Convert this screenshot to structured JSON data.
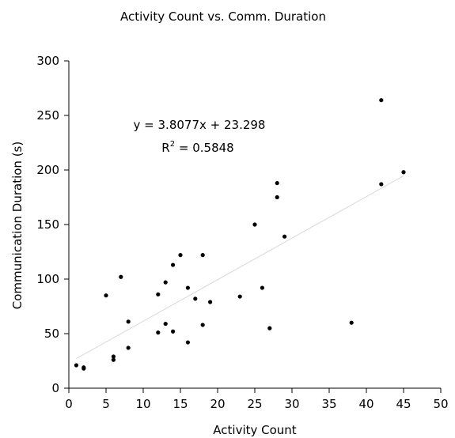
{
  "chart_data": {
    "type": "scatter",
    "title": "Activity Count vs. Comm. Duration",
    "xlabel": "Activity Count",
    "ylabel": "Communication Duration (s)",
    "xlim": [
      0,
      50
    ],
    "ylim": [
      0,
      300
    ],
    "x_ticks": [
      "0",
      "5",
      "10",
      "15",
      "20",
      "25",
      "30",
      "35",
      "40",
      "45",
      "50"
    ],
    "y_ticks": [
      "0",
      "50",
      "100",
      "150",
      "200",
      "250",
      "300"
    ],
    "grid": false,
    "legend": "none",
    "series": [
      {
        "points": [
          [
            1,
            21
          ],
          [
            2,
            18
          ],
          [
            2,
            19
          ],
          [
            5,
            85
          ],
          [
            6,
            26
          ],
          [
            6,
            29
          ],
          [
            7,
            102
          ],
          [
            8,
            61
          ],
          [
            8,
            37
          ],
          [
            12,
            51
          ],
          [
            12,
            86
          ],
          [
            13,
            59
          ],
          [
            13,
            97
          ],
          [
            14,
            113
          ],
          [
            14,
            52
          ],
          [
            15,
            122
          ],
          [
            16,
            92
          ],
          [
            16,
            42
          ],
          [
            17,
            82
          ],
          [
            18,
            122
          ],
          [
            18,
            58
          ],
          [
            19,
            79
          ],
          [
            23,
            84
          ],
          [
            25,
            150
          ],
          [
            26,
            92
          ],
          [
            27,
            55
          ],
          [
            28,
            188
          ],
          [
            28,
            175
          ],
          [
            29,
            139
          ],
          [
            38,
            60
          ],
          [
            42,
            264
          ],
          [
            42,
            187
          ],
          [
            45,
            198
          ]
        ],
        "color": "#000000"
      }
    ],
    "trendline": {
      "slope": 3.8077,
      "intercept": 23.298,
      "x_range": [
        1,
        45
      ],
      "color": "#d9d9d9",
      "equation": "y = 3.8077x + 23.298",
      "r2_prefix": "R",
      "r2_sup": "2",
      "r2_value": " = 0.5848"
    }
  }
}
